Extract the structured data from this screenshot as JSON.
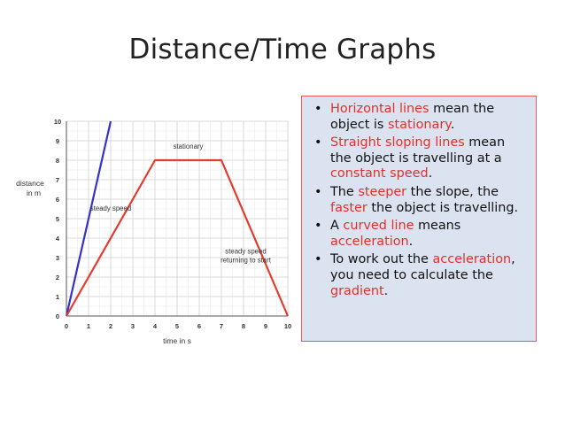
{
  "title": "Distance/Time Graphs",
  "notes": [
    [
      {
        "t": "Horizontal lines",
        "hl": true
      },
      {
        "t": " mean the object is "
      },
      {
        "t": "stationary",
        "hl": true
      },
      {
        "t": "."
      }
    ],
    [
      {
        "t": "Straight sloping lines",
        "hl": true
      },
      {
        "t": " mean the object is travelling at a "
      },
      {
        "t": "constant speed",
        "hl": true
      },
      {
        "t": "."
      }
    ],
    [
      {
        "t": "The "
      },
      {
        "t": "steeper",
        "hl": true
      },
      {
        "t": " the slope, the "
      },
      {
        "t": "faster",
        "hl": true
      },
      {
        "t": " the object is travelling."
      }
    ],
    [
      {
        "t": "A "
      },
      {
        "t": "curved line",
        "hl": true
      },
      {
        "t": " means "
      },
      {
        "t": "acceleration",
        "hl": true
      },
      {
        "t": "."
      }
    ],
    [
      {
        "t": "To work out the "
      },
      {
        "t": "acceleration",
        "hl": true
      },
      {
        "t": ", you need to calculate the "
      },
      {
        "t": "gradient",
        "hl": true
      },
      {
        "t": "."
      }
    ]
  ],
  "colors": {
    "accent": "#e0302a",
    "panel": "#dbe3f0",
    "blue_line": "#3333cc",
    "red_line": "#e53b2e"
  },
  "chart_data": {
    "type": "line",
    "xlabel": "time in s",
    "ylabel": "distance in m",
    "xlim": [
      0,
      10
    ],
    "ylim": [
      0,
      10
    ],
    "xticks": [
      "0",
      "1",
      "2",
      "3",
      "4",
      "5",
      "6",
      "7",
      "8",
      "9",
      "10"
    ],
    "yticks": [
      "0",
      "1",
      "2",
      "3",
      "4",
      "5",
      "6",
      "7",
      "8",
      "9",
      "10"
    ],
    "grid": true,
    "series": [
      {
        "color": "#3333cc",
        "points": [
          [
            0,
            0
          ],
          [
            2,
            10
          ]
        ]
      },
      {
        "color": "#e53b2e",
        "points": [
          [
            0,
            0
          ],
          [
            4,
            8
          ],
          [
            7,
            8
          ],
          [
            10,
            0
          ]
        ]
      }
    ],
    "annotations": [
      {
        "text": "steady speed",
        "x": 2,
        "y": 5.4
      },
      {
        "text": "stationary",
        "x": 5.5,
        "y": 8.6
      },
      {
        "text": "steady speed returning to start",
        "x": 8.1,
        "y": 3.2
      }
    ]
  }
}
